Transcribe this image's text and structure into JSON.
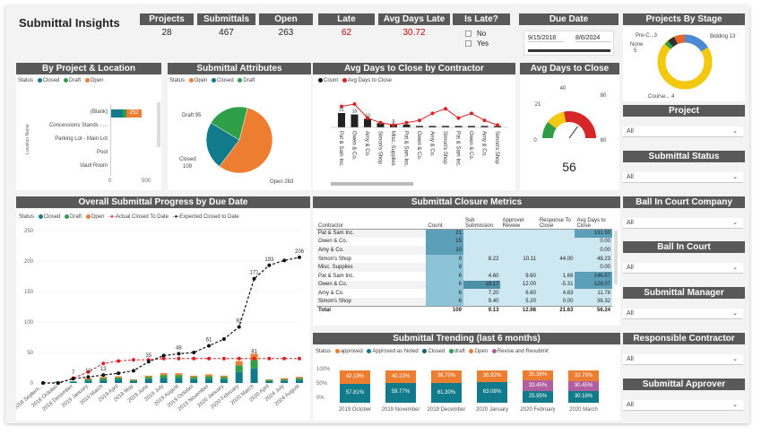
{
  "title": "Submittal Insights",
  "kpis": [
    {
      "label": "Projects",
      "value": "28",
      "color": "#222222"
    },
    {
      "label": "Submittals",
      "value": "467",
      "color": "#222222"
    },
    {
      "label": "Open",
      "value": "263",
      "color": "#222222"
    },
    {
      "label": "Late",
      "value": "62",
      "color": "#c00000"
    },
    {
      "label": "Avg Days Late",
      "value": "30.72",
      "color": "#c00000"
    }
  ],
  "is_late": {
    "label": "Is Late?",
    "options": [
      "No",
      "Yes"
    ]
  },
  "due_date": {
    "label": "Due Date",
    "start": "9/15/2018",
    "end": "8/6/2024"
  },
  "projects_by_stage": {
    "title": "Projects By Stage",
    "labels": [
      "Pre-C...3",
      "None",
      "5",
      "Bidding 13",
      "Course... 4"
    ]
  },
  "by_project": {
    "title": "By Project & Location",
    "legend_label": "Status",
    "legend": [
      {
        "name": "Closed",
        "color": "#117a8b"
      },
      {
        "name": "Draft",
        "color": "#2e9e47"
      },
      {
        "name": "Open",
        "color": "#ed7d31"
      }
    ],
    "yaxis_label": "Location Name",
    "categories": [
      "(Blank)",
      "Concessions Stands - ...",
      "Parking Lot - Main Lot",
      "Pool",
      "Vault Room"
    ],
    "blank_value": "252",
    "ticks": [
      "0",
      "500"
    ]
  },
  "attributes": {
    "title": "Submittal Attributes",
    "legend_label": "Status",
    "legend": [
      {
        "name": "Open",
        "color": "#ed7d31"
      },
      {
        "name": "Closed",
        "color": "#117a8b"
      },
      {
        "name": "Draft",
        "color": "#2e9e47"
      }
    ],
    "slices": [
      {
        "name": "Open",
        "value": 263,
        "color": "#ed7d31"
      },
      {
        "name": "Closed",
        "value": 109,
        "color": "#117a8b"
      },
      {
        "name": "Draft",
        "value": 95,
        "color": "#2e9e47"
      }
    ],
    "labels": [
      "Draft 95",
      "Closed",
      "109",
      "Open 263"
    ]
  },
  "avg_contractor": {
    "title": "Avg Days to Close by Contractor",
    "legend": [
      {
        "name": "Count",
        "color": "#111111"
      },
      {
        "name": "Avg Days to Close",
        "color": "#e02020"
      }
    ],
    "contractors": [
      "Pat & Sam Inc.",
      "Owen & Co.",
      "Amy & Co.",
      "Simon's Shop",
      "Misc. Supplies",
      "Pat & Sam Inc.",
      "Owen & Co.",
      "Amy & Co.",
      "Simon's Shop",
      "Pat & Sam Inc.",
      "Owen & Co.",
      "Amy & Co.",
      "Simon's Shop"
    ],
    "bar_labels": [
      "21",
      "15",
      "10",
      "",
      "9",
      "",
      "",
      "",
      "",
      "",
      "",
      "",
      ""
    ]
  },
  "gauge": {
    "title": "Avg Days to Close",
    "value": "56",
    "min": "0",
    "max": "80",
    "mark1": "21",
    "mark2": "40",
    "pct": 0.7
  },
  "progress": {
    "title": "Overall Submittal Progress by Due Date",
    "legend_label": "Status",
    "legend": [
      {
        "name": "Closed",
        "color": "#117a8b"
      },
      {
        "name": "Draft",
        "color": "#2e9e47"
      },
      {
        "name": "Open",
        "color": "#ed7d31"
      },
      {
        "name": "Actual Closed To Date",
        "color": "#e02020"
      },
      {
        "name": "Expected Closed to Date",
        "color": "#111111"
      }
    ],
    "yticks": [
      "250",
      "200",
      "150",
      "100",
      "50",
      "0"
    ],
    "xlabels": [
      "2018 Septem...",
      "2018 October",
      "2018 December",
      "2019 January",
      "2019 March",
      "2019 April",
      "2019 May",
      "2019 June",
      "2019 July",
      "2019 August",
      "2019 October",
      "2019 November",
      "2020 January",
      "2020 February",
      "2020 March",
      "2020 April",
      "2024 July",
      "2024 August"
    ],
    "expected": [
      0,
      0,
      7,
      10,
      13,
      16,
      20,
      35,
      45,
      48,
      50,
      61,
      72,
      92,
      171,
      193,
      201,
      206
    ],
    "expected_labels": [
      "",
      "",
      "7",
      "10",
      "13",
      "",
      "",
      "35",
      "",
      "48",
      "",
      "61",
      "",
      "92",
      "171",
      "193",
      "",
      "206"
    ],
    "actual": [
      0,
      0,
      8,
      18,
      32,
      36,
      38,
      38,
      40,
      40,
      40,
      40,
      40,
      40,
      40,
      40,
      40,
      40
    ],
    "bars": [
      0,
      2,
      3,
      8,
      10,
      11,
      6,
      12,
      16,
      16,
      12,
      14,
      12,
      36,
      48,
      6,
      8,
      10
    ],
    "top_bar_label": "41",
    "bar_note_labels": [
      "21",
      "26",
      "41",
      "20"
    ]
  },
  "metrics": {
    "title": "Submittal Closure Metrics",
    "columns": [
      "Contractor",
      "Count",
      "Sub Submission",
      "Approver Review",
      "Response To Close",
      "Avg Days to Close"
    ],
    "rows": [
      [
        "Pat & Sam Inc.",
        "21",
        "",
        "",
        "",
        "131.50"
      ],
      [
        "Owen & Co.",
        "15",
        "",
        "",
        "",
        "0.00"
      ],
      [
        "Amy & Co.",
        "10",
        "",
        "",
        "",
        "0.00"
      ],
      [
        "Simon's Shop",
        "9",
        "8.22",
        "10.11",
        "44.00",
        "48.23"
      ],
      [
        "Misc. Supplies",
        "8",
        "",
        "",
        "",
        "0.00"
      ],
      [
        "Pat & Sam Inc.",
        "6",
        "4.60",
        "9.60",
        "1.68",
        "146.57"
      ],
      [
        "Owen & Co.",
        "6",
        "19.17",
        "12.00",
        "-5.31",
        "126.07"
      ],
      [
        "Amy & Co.",
        "6",
        "7.20",
        "6.60",
        "4.63",
        "11.78"
      ],
      [
        "Simon's Shop",
        "6",
        "9.40",
        "5.20",
        "0.00",
        "36.32"
      ]
    ],
    "total": [
      "Total",
      "109",
      "9.13",
      "12.98",
      "21.63",
      "56.24"
    ]
  },
  "trending": {
    "title": "Submittal Trending (last 6 months)",
    "legend_label": "Status",
    "legend": [
      {
        "name": "approved",
        "color": "#ed7d31"
      },
      {
        "name": "Approved as Noted",
        "color": "#117a8b"
      },
      {
        "name": "Closed",
        "color": "#117a8b"
      },
      {
        "name": "draft",
        "color": "#2e9e47"
      },
      {
        "name": "Open",
        "color": "#ed7d31"
      },
      {
        "name": "Revise and Resubmit",
        "color": "#b05fa0"
      }
    ],
    "yticks": [
      "100%",
      "50%",
      "0%"
    ],
    "months": [
      "2019 October",
      "2019 November",
      "2019 December",
      "2020 January",
      "2020 February",
      "2020 March"
    ],
    "top": [
      "42.19%",
      "40.23%",
      "38.70%",
      "36.92%",
      "30.38%",
      "33.79%"
    ],
    "mid": [
      "",
      "",
      "",
      "",
      "33.45%",
      "30.45%"
    ],
    "bottom": [
      "57.81%",
      "59.77%",
      "61.30%",
      "63.08%",
      "25.95%",
      "30.18%"
    ]
  },
  "slicers": [
    {
      "label": "Project",
      "value": "All"
    },
    {
      "label": "Submittal Status",
      "value": "All"
    },
    {
      "label": "Ball In Court Company",
      "value": "All"
    },
    {
      "label": "Ball In Court",
      "value": "All"
    },
    {
      "label": "Submittal Manager",
      "value": "All"
    },
    {
      "label": "Responsible Contractor",
      "value": "All"
    },
    {
      "label": "Submittal Approver",
      "value": "All"
    }
  ]
}
